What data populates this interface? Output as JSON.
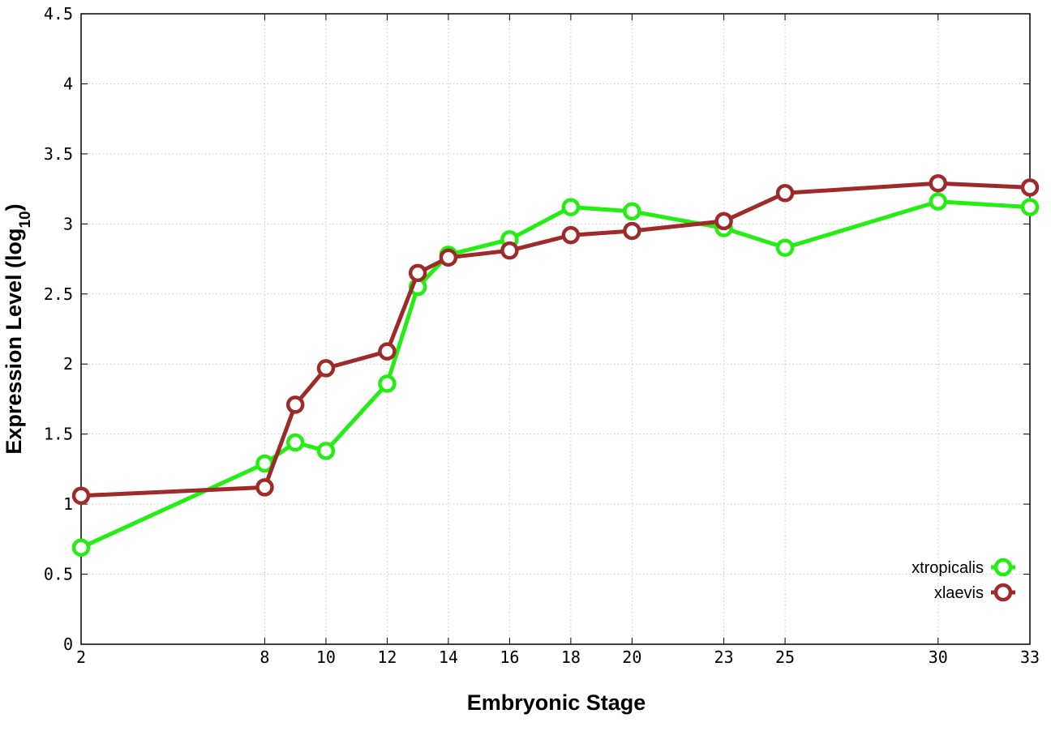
{
  "chart_data": {
    "type": "line",
    "title": "",
    "xlabel": "Embryonic Stage",
    "ylabel_main": "Expression Level (log",
    "ylabel_sub": "10",
    "ylabel_close": ")",
    "xlim": [
      2,
      33
    ],
    "ylim": [
      0,
      4.5
    ],
    "x_ticks": [
      2,
      8,
      10,
      12,
      14,
      16,
      18,
      20,
      23,
      25,
      30,
      33
    ],
    "x_tick_labels": [
      "2",
      "8",
      "10",
      "12",
      "14",
      "16",
      "18",
      "20",
      "23",
      "25",
      "30",
      "33"
    ],
    "y_ticks": [
      0,
      0.5,
      1,
      1.5,
      2,
      2.5,
      3,
      3.5,
      4,
      4.5
    ],
    "y_tick_labels": [
      "0",
      "0.5",
      "1",
      "1.5",
      "2",
      "2.5",
      "3",
      "3.5",
      "4",
      "4.5"
    ],
    "grid": true,
    "legend_position": "bottom-right",
    "series": [
      {
        "name": "xtropicalis",
        "color": "#22ee11",
        "x": [
          2,
          8,
          9,
          10,
          12,
          13,
          14,
          16,
          18,
          20,
          23,
          25,
          30,
          33
        ],
        "y": [
          0.69,
          1.29,
          1.44,
          1.38,
          1.86,
          2.55,
          2.78,
          2.89,
          3.12,
          3.09,
          2.97,
          2.83,
          3.16,
          3.12
        ]
      },
      {
        "name": "xlaevis",
        "color": "#9e2a2a",
        "x": [
          2,
          8,
          9,
          10,
          12,
          13,
          14,
          16,
          18,
          20,
          23,
          25,
          30,
          33
        ],
        "y": [
          1.06,
          1.12,
          1.71,
          1.97,
          2.09,
          2.65,
          2.76,
          2.81,
          2.92,
          2.95,
          3.02,
          3.22,
          3.29,
          3.26
        ]
      }
    ]
  }
}
